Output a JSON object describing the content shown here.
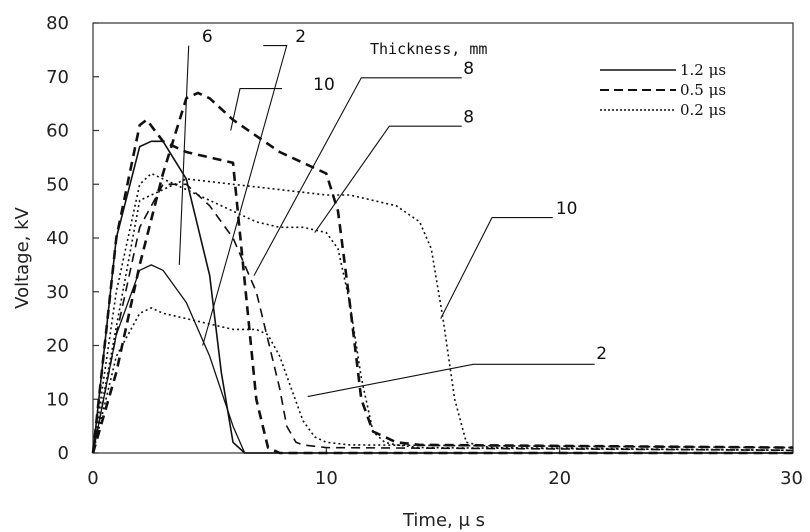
{
  "chart_data": {
    "type": "line",
    "xlabel": "Time, μ s",
    "ylabel": "Voltage, kV",
    "xlim": [
      0,
      30
    ],
    "ylim": [
      0,
      80
    ],
    "xticks": [
      "0",
      "10",
      "20",
      "30"
    ],
    "yticks": [
      "0",
      "10",
      "20",
      "30",
      "40",
      "50",
      "60",
      "70",
      "80"
    ],
    "grid": false,
    "legend": {
      "title": "Thickness, mm",
      "placement": "top-right",
      "entries": [
        {
          "label": "1.2 μs",
          "style": "solid"
        },
        {
          "label": "0.5 μs",
          "style": "dashed"
        },
        {
          "label": "0.2 μs",
          "style": "dotted"
        }
      ]
    },
    "series": [
      {
        "style": "solid",
        "width": 1.6,
        "x": [
          0,
          1,
          2,
          2.5,
          3,
          4,
          5,
          5.5,
          6,
          6.5,
          8,
          30
        ],
        "y": [
          0,
          40,
          57,
          58,
          58,
          51,
          33,
          15,
          2,
          0,
          0,
          0
        ]
      },
      {
        "style": "solid",
        "width": 1.3,
        "x": [
          0,
          1,
          2,
          2.5,
          3,
          4,
          5,
          6,
          6.5,
          7,
          8,
          30
        ],
        "y": [
          0,
          22,
          34,
          35,
          34,
          28,
          18,
          5,
          0,
          0,
          0,
          0
        ]
      },
      {
        "style": "dashed",
        "width": 2.6,
        "x": [
          0,
          1,
          2,
          2.3,
          3,
          4,
          5,
          6,
          7,
          7.5,
          8,
          30
        ],
        "y": [
          0,
          40,
          61,
          62,
          58,
          56,
          55,
          54,
          10,
          1,
          0,
          0
        ]
      },
      {
        "style": "dashed",
        "width": 2.6,
        "x": [
          0,
          1,
          2,
          3,
          4,
          4.5,
          5,
          6,
          7,
          8,
          9,
          10,
          10.5,
          11,
          11.5,
          12,
          13,
          14,
          30
        ],
        "y": [
          0,
          15,
          35,
          52,
          66,
          67,
          66,
          62,
          59,
          56,
          54,
          52,
          45,
          28,
          10,
          4,
          2,
          1.5,
          1
        ]
      },
      {
        "style": "dashed",
        "width": 1.6,
        "x": [
          0,
          1,
          2,
          3,
          4,
          5,
          6,
          7,
          8,
          8.3,
          8.7,
          9,
          10,
          30
        ],
        "y": [
          0,
          22,
          42,
          50,
          50,
          46,
          40,
          30,
          12,
          5,
          2,
          1.5,
          1,
          0.5
        ]
      },
      {
        "style": "dotted",
        "width": 1.6,
        "x": [
          0,
          1,
          2,
          2.5,
          3,
          4,
          5,
          6,
          7,
          8,
          9,
          10,
          10.5,
          11,
          11.5,
          12,
          12.5,
          13,
          14,
          30
        ],
        "y": [
          0,
          30,
          50,
          52,
          51,
          49,
          47,
          45,
          43,
          42,
          42,
          41,
          38,
          28,
          14,
          4,
          2,
          1.5,
          1,
          0.5
        ]
      },
      {
        "style": "dotted",
        "width": 1.6,
        "x": [
          0,
          2,
          4,
          6,
          8,
          10,
          11,
          12,
          13,
          14,
          14.5,
          15,
          15.5,
          16,
          17,
          30
        ],
        "y": [
          0,
          47,
          51,
          50,
          49,
          48,
          48,
          47,
          46,
          43,
          38,
          25,
          10,
          2,
          1,
          0.5
        ]
      },
      {
        "style": "dotted",
        "width": 1.6,
        "x": [
          0,
          1,
          2,
          2.5,
          3,
          4,
          5,
          6,
          7,
          7.5,
          8,
          8.5,
          9,
          9.5,
          10,
          11,
          30
        ],
        "y": [
          0,
          18,
          26,
          27,
          26,
          25,
          24,
          23,
          23,
          22,
          18,
          12,
          6,
          3,
          2,
          1.5,
          1
        ]
      }
    ],
    "annotations": [
      {
        "text": "6",
        "tx": 4.9,
        "ty": 76.5,
        "line": [
          [
            4.1,
            75.8
          ],
          [
            3.7,
            35
          ]
        ]
      },
      {
        "text": "2",
        "tx": 8.9,
        "ty": 76.5,
        "line": [
          [
            7.3,
            75.8
          ],
          [
            8.3,
            75.8
          ],
          [
            4.7,
            20
          ]
        ]
      },
      {
        "text": "10",
        "tx": 9.9,
        "ty": 67.5,
        "line": [
          [
            8.1,
            67.8
          ],
          [
            6.3,
            67.8
          ],
          [
            5.9,
            60
          ]
        ]
      },
      {
        "text": "8",
        "tx": 16.1,
        "ty": 70.5,
        "line": [
          [
            15.8,
            69.8
          ],
          [
            11.5,
            69.8
          ],
          [
            6.9,
            33
          ]
        ]
      },
      {
        "text": "8",
        "tx": 16.1,
        "ty": 61.5,
        "line": [
          [
            15.8,
            60.8
          ],
          [
            12.7,
            60.8
          ],
          [
            9.5,
            41
          ]
        ]
      },
      {
        "text": "10",
        "tx": 20.3,
        "ty": 44.5,
        "line": [
          [
            19.7,
            43.8
          ],
          [
            17.1,
            43.8
          ],
          [
            14.9,
            25
          ]
        ]
      },
      {
        "text": "2",
        "tx": 21.8,
        "ty": 17.5,
        "line": [
          [
            21.5,
            16.5
          ],
          [
            16.3,
            16.5
          ],
          [
            9.2,
            10.5
          ]
        ]
      }
    ]
  }
}
